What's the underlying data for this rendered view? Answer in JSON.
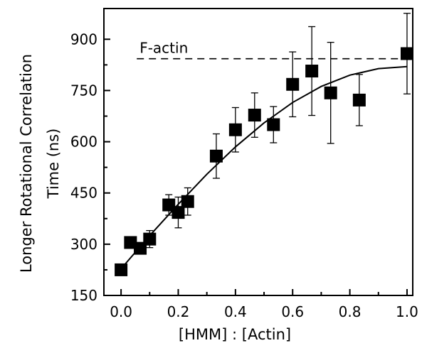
{
  "chart_data": {
    "type": "scatter",
    "title": "",
    "xlabel": "[HMM] : [Actin]",
    "ylabel_lines": [
      "Longer Rotational Correlation",
      "Time (ns)"
    ],
    "xlim": [
      -0.06,
      1.02
    ],
    "ylim": [
      150,
      990
    ],
    "xticks": [
      0.0,
      0.2,
      0.4,
      0.6,
      0.8,
      1.0
    ],
    "xtick_labels": [
      "0.0",
      "0.2",
      "0.4",
      "0.6",
      "0.8",
      "1.0"
    ],
    "yticks": [
      150,
      300,
      450,
      600,
      750,
      900
    ],
    "ytick_labels": [
      "150",
      "300",
      "450",
      "600",
      "750",
      "900"
    ],
    "grid": false,
    "legend": "none",
    "series": [
      {
        "marker": "square",
        "color": "#000000",
        "points": [
          {
            "x": 0.0,
            "y": 225,
            "err": 0
          },
          {
            "x": 0.033,
            "y": 305,
            "err": 0
          },
          {
            "x": 0.067,
            "y": 288,
            "err": 0
          },
          {
            "x": 0.1,
            "y": 315,
            "err": 25
          },
          {
            "x": 0.167,
            "y": 415,
            "err": 30
          },
          {
            "x": 0.2,
            "y": 393,
            "err": 45
          },
          {
            "x": 0.233,
            "y": 425,
            "err": 40
          },
          {
            "x": 0.333,
            "y": 558,
            "err": 65
          },
          {
            "x": 0.4,
            "y": 635,
            "err": 65
          },
          {
            "x": 0.467,
            "y": 678,
            "err": 65
          },
          {
            "x": 0.533,
            "y": 650,
            "err": 53
          },
          {
            "x": 0.6,
            "y": 768,
            "err": 95
          },
          {
            "x": 0.667,
            "y": 807,
            "err": 130
          },
          {
            "x": 0.733,
            "y": 743,
            "err": 148
          },
          {
            "x": 0.833,
            "y": 722,
            "err": 75
          },
          {
            "x": 1.0,
            "y": 858,
            "err": 118
          }
        ]
      }
    ],
    "fit_curve": {
      "style": "solid",
      "color": "#000000",
      "points": [
        {
          "x": 0.0,
          "y": 228
        },
        {
          "x": 0.1,
          "y": 325
        },
        {
          "x": 0.2,
          "y": 417
        },
        {
          "x": 0.3,
          "y": 505
        },
        {
          "x": 0.4,
          "y": 585
        },
        {
          "x": 0.5,
          "y": 655
        },
        {
          "x": 0.6,
          "y": 715
        },
        {
          "x": 0.7,
          "y": 762
        },
        {
          "x": 0.8,
          "y": 795
        },
        {
          "x": 0.9,
          "y": 814
        },
        {
          "x": 1.0,
          "y": 820
        }
      ]
    },
    "reference_line": {
      "label": "F-actin",
      "y": 843,
      "x_start": 0.055,
      "x_end": 1.0,
      "style": "dashed",
      "color": "#000000"
    }
  }
}
